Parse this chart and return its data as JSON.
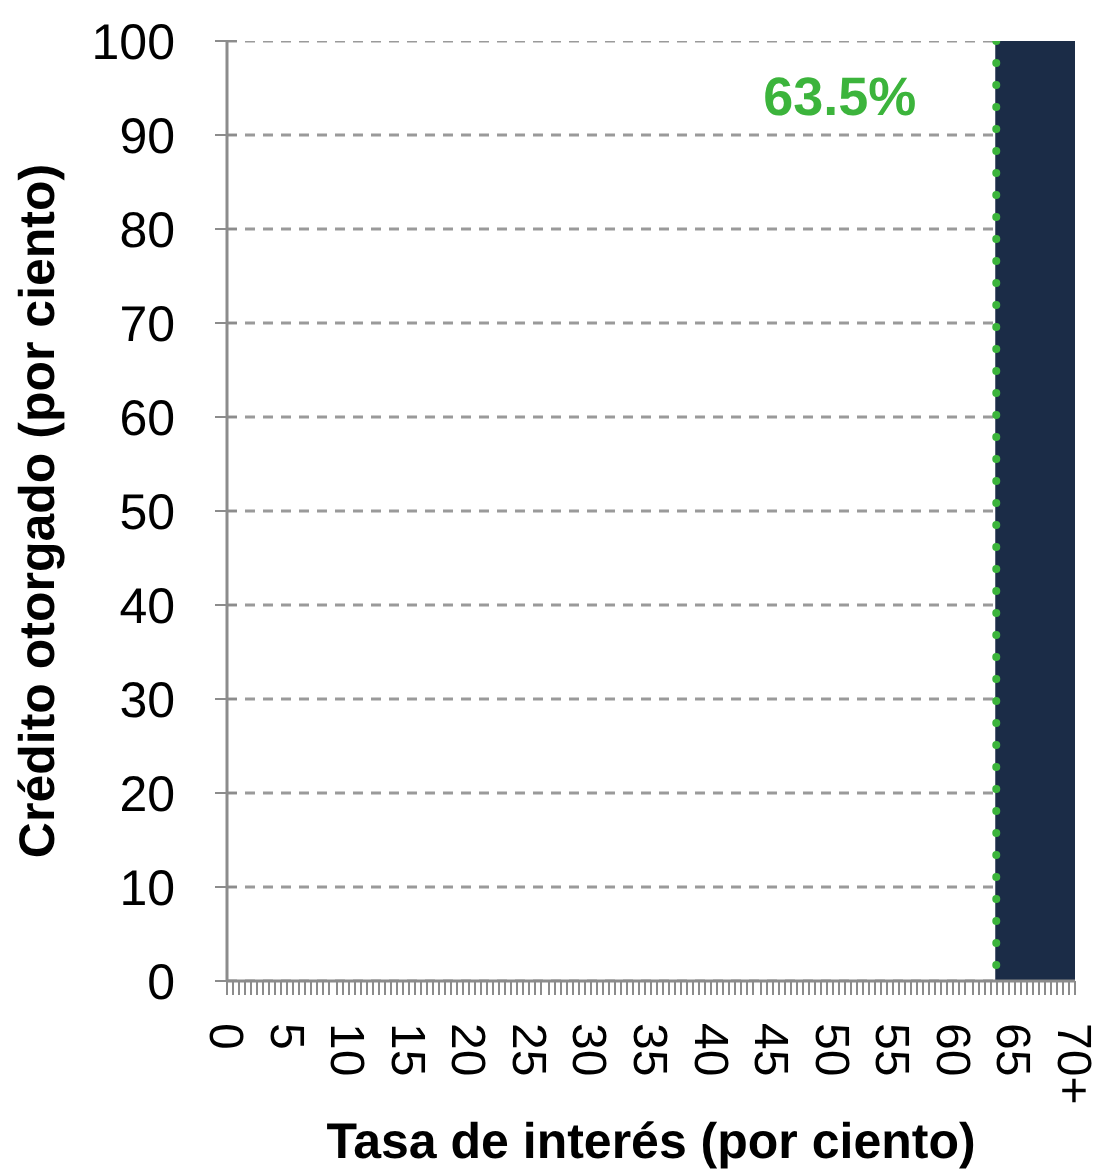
{
  "chart_data": {
    "type": "histogram",
    "xlabel": "Tasa de interés (por ciento)",
    "ylabel": "Crédito otorgado (por ciento)",
    "bins": [
      63.5,
      70
    ],
    "values": [
      100
    ],
    "color": "#1b2c47",
    "xlim": [
      0,
      70
    ],
    "xticks": [
      0,
      5,
      10,
      15,
      20,
      25,
      30,
      35,
      40,
      45,
      50,
      55,
      60,
      65,
      {
        "value": 70,
        "label": "70+"
      }
    ],
    "ylim": [
      0,
      100
    ],
    "yticks": [
      0,
      10,
      20,
      30,
      40,
      50,
      60,
      70,
      80,
      90,
      100
    ],
    "grid": "y",
    "ref_lines": [
      {
        "axis": "x",
        "value": 63.5,
        "label": "63.5%",
        "color": "#3cb43c",
        "line_style": "dotted"
      }
    ]
  }
}
